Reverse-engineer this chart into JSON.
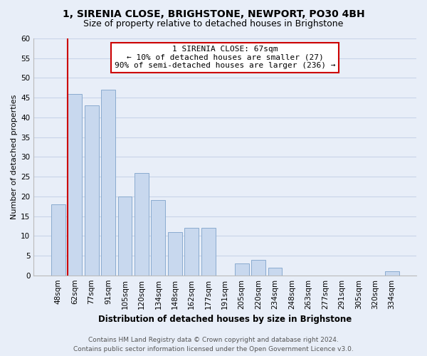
{
  "title": "1, SIRENIA CLOSE, BRIGHSTONE, NEWPORT, PO30 4BH",
  "subtitle": "Size of property relative to detached houses in Brighstone",
  "xlabel": "Distribution of detached houses by size in Brighstone",
  "ylabel": "Number of detached properties",
  "bar_labels": [
    "48sqm",
    "62sqm",
    "77sqm",
    "91sqm",
    "105sqm",
    "120sqm",
    "134sqm",
    "148sqm",
    "162sqm",
    "177sqm",
    "191sqm",
    "205sqm",
    "220sqm",
    "234sqm",
    "248sqm",
    "263sqm",
    "277sqm",
    "291sqm",
    "305sqm",
    "320sqm",
    "334sqm"
  ],
  "bar_values": [
    18,
    46,
    43,
    47,
    20,
    26,
    19,
    11,
    12,
    12,
    0,
    3,
    4,
    2,
    0,
    0,
    0,
    0,
    0,
    0,
    1
  ],
  "bar_color": "#c8d8ee",
  "bar_edge_color": "#8aabcf",
  "reference_line_color": "#cc0000",
  "ylim": [
    0,
    60
  ],
  "yticks": [
    0,
    5,
    10,
    15,
    20,
    25,
    30,
    35,
    40,
    45,
    50,
    55,
    60
  ],
  "annotation_title": "1 SIRENIA CLOSE: 67sqm",
  "annotation_line1": "← 10% of detached houses are smaller (27)",
  "annotation_line2": "90% of semi-detached houses are larger (236) →",
  "annotation_box_facecolor": "#ffffff",
  "annotation_box_edgecolor": "#cc0000",
  "footer_line1": "Contains HM Land Registry data © Crown copyright and database right 2024.",
  "footer_line2": "Contains public sector information licensed under the Open Government Licence v3.0.",
  "grid_color": "#c8d4e8",
  "bg_color": "#e8eef8",
  "title_fontsize": 10,
  "subtitle_fontsize": 9,
  "xlabel_fontsize": 8.5,
  "ylabel_fontsize": 8,
  "tick_fontsize": 7.5,
  "annotation_fontsize": 8,
  "footer_fontsize": 6.5
}
